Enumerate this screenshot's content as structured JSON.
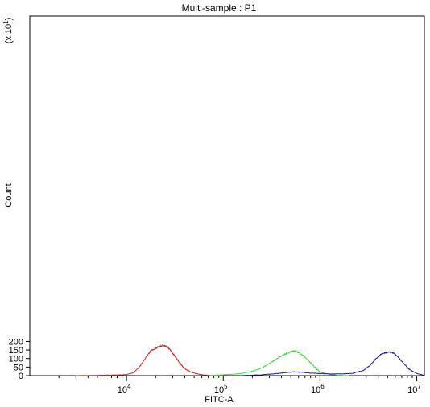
{
  "chart_data": {
    "type": "line",
    "title": "Multi-sample : P1",
    "xlabel": "FITC-A",
    "ylabel": "Count",
    "y_multiplier": "(x 10",
    "y_multiplier_exp": "1",
    "y_multiplier_close": ")",
    "x_scale": "log",
    "xlim": [
      1000,
      12000000
    ],
    "ylim": [
      0,
      210
    ],
    "x_ticks": [
      {
        "base": "10",
        "exp": "4",
        "value": 10000
      },
      {
        "base": "10",
        "exp": "5",
        "value": 100000
      },
      {
        "base": "10",
        "exp": "6",
        "value": 1000000
      },
      {
        "base": "10",
        "exp": "7",
        "value": 10000000
      }
    ],
    "y_ticks": [
      "0",
      "50",
      "100",
      "150",
      "200"
    ],
    "legend": "none",
    "grid": false,
    "series": [
      {
        "color": "#cc2a2a",
        "x": [
          3000,
          5000,
          8000,
          10000,
          12000,
          14000,
          16000,
          18000,
          20000,
          22000,
          24000,
          26000,
          28000,
          30000,
          33000,
          36000,
          40000,
          45000,
          50000,
          60000,
          70000,
          85000,
          100000
        ],
        "y": [
          0,
          2,
          4,
          6,
          20,
          60,
          110,
          148,
          160,
          172,
          176,
          170,
          155,
          130,
          100,
          70,
          40,
          25,
          15,
          5,
          2,
          1,
          0
        ]
      },
      {
        "color": "#33dd33",
        "x": [
          70000,
          100000,
          150000,
          200000,
          250000,
          300000,
          350000,
          400000,
          450000,
          500000,
          550000,
          600000,
          700000,
          800000,
          900000,
          1000000,
          1200000,
          1500000,
          2000000
        ],
        "y": [
          0,
          5,
          12,
          25,
          45,
          70,
          95,
          115,
          130,
          140,
          145,
          135,
          110,
          75,
          45,
          22,
          10,
          3,
          0
        ]
      },
      {
        "color": "#1a1a99",
        "x": [
          150000,
          250000,
          350000,
          450000,
          550000,
          650000,
          800000,
          1000000,
          1300000,
          1700000,
          2200000,
          2800000,
          3300000,
          3800000,
          4300000,
          4800000,
          5300000,
          5800000,
          6500000,
          7500000,
          8500000,
          10000000,
          12000000
        ],
        "y": [
          0,
          5,
          12,
          18,
          22,
          20,
          15,
          12,
          10,
          10,
          14,
          30,
          60,
          100,
          125,
          135,
          138,
          132,
          105,
          65,
          35,
          12,
          2
        ]
      }
    ]
  }
}
